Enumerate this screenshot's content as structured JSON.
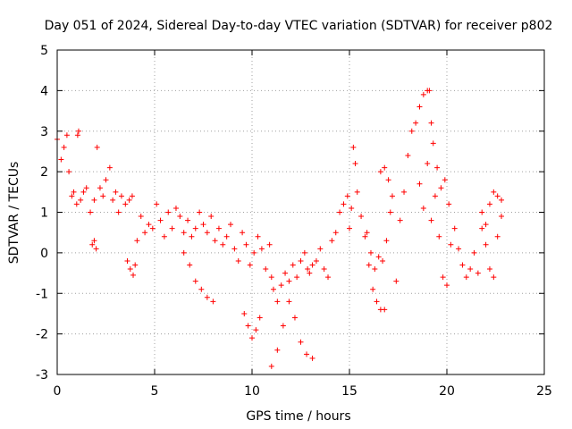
{
  "chart_data": {
    "type": "scatter",
    "title": "Day 051 of 2024, Sidereal Day-to-day VTEC variation (SDTVAR) for receiver p802",
    "xlabel": "GPS time / hours",
    "ylabel": "SDTVAR / TECUs",
    "xlim": [
      0,
      25
    ],
    "ylim": [
      -3,
      5
    ],
    "xticks": [
      0,
      5,
      10,
      15,
      20,
      25
    ],
    "yticks": [
      -3,
      -2,
      -1,
      0,
      1,
      2,
      3,
      4,
      5
    ],
    "grid": true,
    "marker": "+",
    "color": "#ff0000",
    "series": [
      {
        "name": "SDTVAR",
        "x": [
          0.0,
          0.2,
          0.35,
          0.5,
          0.6,
          0.75,
          0.85,
          1.0,
          1.05,
          1.1,
          1.2,
          1.35,
          1.5,
          1.7,
          1.9,
          2.05,
          2.2,
          2.35,
          2.5,
          2.7,
          2.85,
          3.0,
          3.15,
          3.3,
          3.5,
          3.7,
          3.85,
          3.6,
          3.75,
          3.9,
          4.0,
          4.1,
          4.3,
          4.5,
          4.7,
          4.9,
          5.1,
          5.3,
          5.5,
          5.7,
          5.9,
          6.1,
          6.3,
          6.5,
          6.7,
          6.9,
          7.1,
          7.3,
          7.5,
          7.7,
          7.9,
          6.5,
          6.8,
          7.1,
          7.4,
          7.7,
          8.0,
          8.1,
          8.3,
          8.5,
          8.7,
          8.9,
          9.1,
          9.3,
          9.5,
          9.7,
          9.9,
          10.1,
          10.3,
          10.5,
          10.7,
          10.9,
          11.0,
          9.6,
          9.8,
          10.0,
          10.2,
          10.4,
          11.1,
          11.3,
          11.5,
          11.7,
          11.9,
          12.1,
          12.3,
          12.5,
          12.7,
          12.85,
          12.95,
          13.1,
          13.3,
          13.5,
          13.7,
          13.9,
          14.1,
          14.3,
          14.5,
          14.7,
          14.9,
          11.0,
          11.3,
          11.6,
          11.9,
          12.2,
          12.5,
          12.8,
          13.1,
          15.0,
          15.1,
          15.2,
          15.3,
          15.4,
          15.6,
          15.8,
          16.0,
          16.2,
          16.4,
          16.6,
          16.8,
          15.9,
          16.1,
          16.3,
          16.5,
          16.7,
          16.9,
          17.1,
          16.6,
          16.8,
          17.0,
          17.2,
          17.4,
          17.6,
          17.8,
          18.0,
          18.2,
          18.4,
          18.6,
          18.8,
          19.0,
          19.1,
          19.2,
          19.3,
          19.5,
          19.7,
          19.9,
          20.1,
          18.6,
          18.8,
          19.0,
          19.2,
          19.4,
          19.6,
          19.8,
          20.0,
          20.2,
          20.4,
          20.6,
          20.8,
          21.0,
          21.2,
          21.4,
          21.6,
          21.8,
          22.0,
          22.2,
          22.4,
          22.6,
          22.8,
          21.8,
          22.0,
          22.2,
          22.4,
          22.6,
          22.8,
          1.8,
          1.9,
          2.0
        ],
        "y": [
          2.8,
          2.3,
          2.6,
          2.9,
          2.0,
          1.4,
          1.5,
          1.2,
          2.9,
          3.0,
          1.3,
          1.5,
          1.6,
          1.0,
          1.3,
          2.6,
          1.6,
          1.4,
          1.8,
          2.1,
          1.3,
          1.5,
          1.0,
          1.4,
          1.2,
          1.3,
          1.4,
          -0.2,
          -0.4,
          -0.55,
          -0.3,
          0.3,
          0.9,
          0.5,
          0.7,
          0.6,
          1.2,
          0.8,
          0.4,
          1.0,
          0.6,
          1.1,
          0.9,
          0.5,
          0.8,
          0.4,
          0.6,
          1.0,
          0.7,
          0.5,
          0.9,
          0.0,
          -0.3,
          -0.7,
          -0.9,
          -1.1,
          -1.2,
          0.3,
          0.6,
          0.2,
          0.4,
          0.7,
          0.1,
          -0.2,
          0.5,
          0.2,
          -0.3,
          0.0,
          0.4,
          0.1,
          -0.4,
          0.2,
          -0.6,
          -1.5,
          -1.8,
          -2.1,
          -1.9,
          -1.6,
          -0.9,
          -1.2,
          -0.8,
          -0.5,
          -0.7,
          -0.3,
          -0.6,
          -0.2,
          0.0,
          -0.4,
          -0.5,
          -0.3,
          -0.2,
          0.1,
          -0.4,
          -0.6,
          0.3,
          0.5,
          1.0,
          1.2,
          1.4,
          -2.8,
          -2.4,
          -1.8,
          -1.2,
          -1.6,
          -2.2,
          -2.5,
          -2.6,
          0.6,
          1.1,
          2.6,
          2.2,
          1.5,
          0.9,
          0.4,
          -0.3,
          -0.9,
          -1.2,
          -1.4,
          -1.4,
          0.5,
          0.0,
          -0.4,
          -0.1,
          -0.2,
          0.3,
          1.0,
          2.0,
          2.1,
          1.8,
          1.4,
          -0.7,
          0.8,
          1.5,
          2.4,
          3.0,
          3.2,
          3.6,
          3.9,
          4.0,
          4.0,
          3.2,
          2.7,
          2.1,
          1.6,
          1.8,
          1.2,
          1.7,
          1.1,
          2.2,
          0.8,
          1.4,
          0.4,
          -0.6,
          -0.8,
          0.2,
          0.6,
          0.1,
          -0.3,
          -0.6,
          -0.4,
          0.0,
          -0.5,
          0.6,
          0.2,
          -0.4,
          -0.6,
          0.4,
          1.3,
          1.0,
          0.7,
          1.2,
          1.5,
          1.4,
          0.9,
          0.2,
          0.3,
          0.1
        ]
      }
    ]
  }
}
